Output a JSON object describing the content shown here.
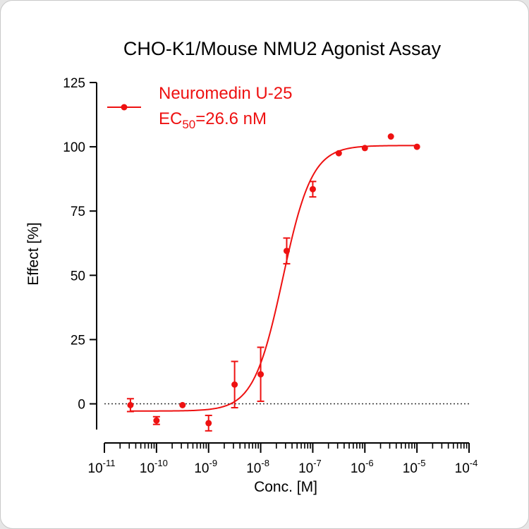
{
  "chart_data": {
    "type": "scatter",
    "title": "CHO-K1/Mouse NMU2 Agonist Assay",
    "xlabel": "Conc. [M]",
    "ylabel": "Effect  [%]",
    "x_scale": "log",
    "xlim": [
      1e-11,
      0.0001
    ],
    "ylim": [
      -10,
      125
    ],
    "x_ticks": [
      {
        "base": "10",
        "exp": "-11",
        "value": 1e-11
      },
      {
        "base": "10",
        "exp": "-10",
        "value": 1e-10
      },
      {
        "base": "10",
        "exp": "-9",
        "value": 1e-09
      },
      {
        "base": "10",
        "exp": "-8",
        "value": 1e-08
      },
      {
        "base": "10",
        "exp": "-7",
        "value": 1e-07
      },
      {
        "base": "10",
        "exp": "-6",
        "value": 1e-06
      },
      {
        "base": "10",
        "exp": "-5",
        "value": 1e-05
      },
      {
        "base": "10",
        "exp": "-4",
        "value": 0.0001
      }
    ],
    "y_ticks": [
      0,
      25,
      50,
      75,
      100,
      125
    ],
    "y_tick_labels": [
      "0",
      "25",
      "50",
      "75",
      "100",
      "125"
    ],
    "zero_line": "dotted",
    "legend_position": "top-left",
    "series": [
      {
        "name": "Neuromedin U-25",
        "color": "#ee1111",
        "points": [
          {
            "x": 3.16e-11,
            "y": -0.5,
            "err": 2.5
          },
          {
            "x": 1e-10,
            "y": -6.5,
            "err": 1.5
          },
          {
            "x": 3.16e-10,
            "y": -0.5,
            "err": 0
          },
          {
            "x": 1e-09,
            "y": -7.5,
            "err": 3
          },
          {
            "x": 3.16e-09,
            "y": 7.5,
            "err": 9
          },
          {
            "x": 1e-08,
            "y": 11.5,
            "err": 10.5
          },
          {
            "x": 3.16e-08,
            "y": 59.5,
            "err": 5
          },
          {
            "x": 1e-07,
            "y": 83.5,
            "err": 3
          },
          {
            "x": 3.16e-07,
            "y": 97.5,
            "err": 0
          },
          {
            "x": 1e-06,
            "y": 99.5,
            "err": 0
          },
          {
            "x": 3.16e-06,
            "y": 104,
            "err": 0
          },
          {
            "x": 1e-05,
            "y": 100,
            "err": 0
          }
        ],
        "fit": {
          "model": "4PL",
          "bottom": -2.8,
          "top": 100.5,
          "ec50": 2.66e-08,
          "hill": 1.55,
          "x_range": [
            3.16e-11,
            1e-05
          ]
        }
      }
    ],
    "legend": {
      "label": "Neuromedin U-25",
      "ec50_prefix": "EC",
      "ec50_sub": "50",
      "ec50_value": "=26.6 nM"
    }
  }
}
